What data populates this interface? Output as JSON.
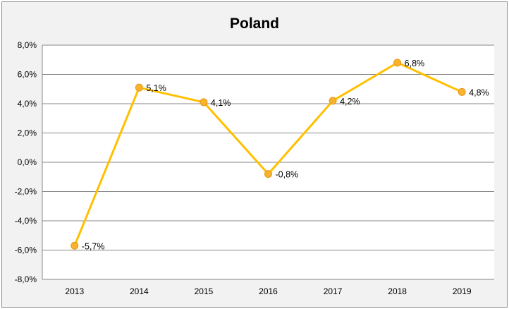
{
  "chart_data": {
    "type": "line",
    "title": "Poland",
    "categories": [
      "2013",
      "2014",
      "2015",
      "2016",
      "2017",
      "2018",
      "2019"
    ],
    "series": [
      {
        "values": [
          -5.7,
          5.1,
          4.1,
          -0.8,
          4.2,
          6.8,
          4.8
        ]
      }
    ],
    "data_labels": [
      "-5,7%",
      "5,1%",
      "4,1%",
      "-0,8%",
      "4,2%",
      "6,8%",
      "4,8%"
    ],
    "yticks": [
      "-8,0%",
      "-6,0%",
      "-4,0%",
      "-2,0%",
      "0,0%",
      "2,0%",
      "4,0%",
      "6,0%",
      "8,0%"
    ],
    "ylim": [
      -8,
      8
    ],
    "grid": true,
    "legend": "none",
    "colors": {
      "line": "#FFC000",
      "marker_fill": "#F7B32B",
      "marker_edge": "#E8961A",
      "grid": "#878787",
      "background": "#F2F2F2",
      "plot_background": "#FFFFFF"
    }
  }
}
